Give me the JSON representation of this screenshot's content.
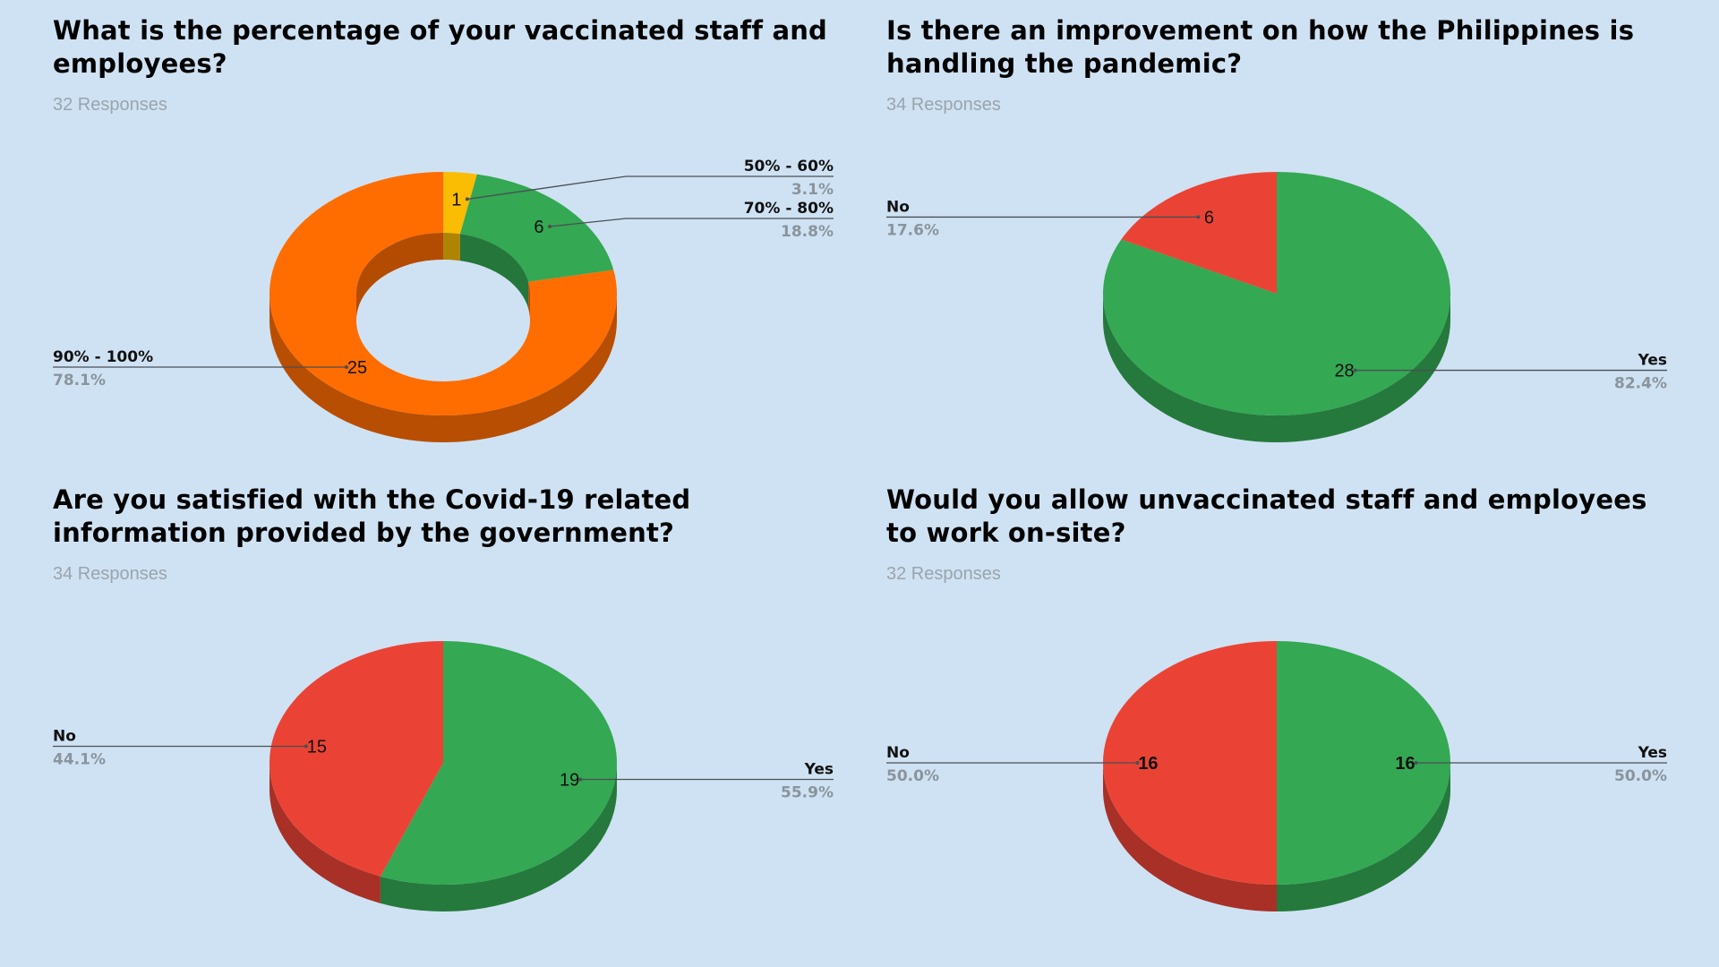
{
  "colors": {
    "background": "#cfe2f3",
    "green": "#34a853",
    "red": "#ea4335",
    "orange": "#ff6d01",
    "yellow": "#fbbc04"
  },
  "chart_data": [
    {
      "type": "pie",
      "variant": "3d-donut",
      "title": "What is the percentage of your vaccinated staff and employees?",
      "subtitle": "32 Responses",
      "slices": [
        {
          "label": "50% - 60%",
          "value": 1,
          "percent": "3.1%",
          "color": "#fbbc04",
          "side": "right"
        },
        {
          "label": "70% - 80%",
          "value": 6,
          "percent": "18.8%",
          "color": "#34a853",
          "side": "right"
        },
        {
          "label": "90% - 100%",
          "value": 25,
          "percent": "78.1%",
          "color": "#ff6d01",
          "side": "left"
        }
      ]
    },
    {
      "type": "pie",
      "variant": "3d",
      "title": "Is there an improvement on how the Philippines is handling the pandemic?",
      "subtitle": "34 Responses",
      "slices": [
        {
          "label": "Yes",
          "value": 28,
          "percent": "82.4%",
          "color": "#34a853",
          "side": "right"
        },
        {
          "label": "No",
          "value": 6,
          "percent": "17.6%",
          "color": "#ea4335",
          "side": "left"
        }
      ]
    },
    {
      "type": "pie",
      "variant": "3d",
      "title": "Are you satisfied with the Covid-19 related information provided by the government?",
      "subtitle": "34 Responses",
      "slices": [
        {
          "label": "Yes",
          "value": 19,
          "percent": "55.9%",
          "color": "#34a853",
          "side": "right"
        },
        {
          "label": "No",
          "value": 15,
          "percent": "44.1%",
          "color": "#ea4335",
          "side": "left"
        }
      ]
    },
    {
      "type": "pie",
      "variant": "3d",
      "value_labels_bold": true,
      "title": "Would you allow unvaccinated staff  and employees to work on-site?",
      "subtitle": "32 Responses",
      "slices": [
        {
          "label": "Yes",
          "value": 16,
          "percent": "50.0%",
          "color": "#34a853",
          "side": "right"
        },
        {
          "label": "No",
          "value": 16,
          "percent": "50.0%",
          "color": "#ea4335",
          "side": "left"
        }
      ]
    }
  ]
}
